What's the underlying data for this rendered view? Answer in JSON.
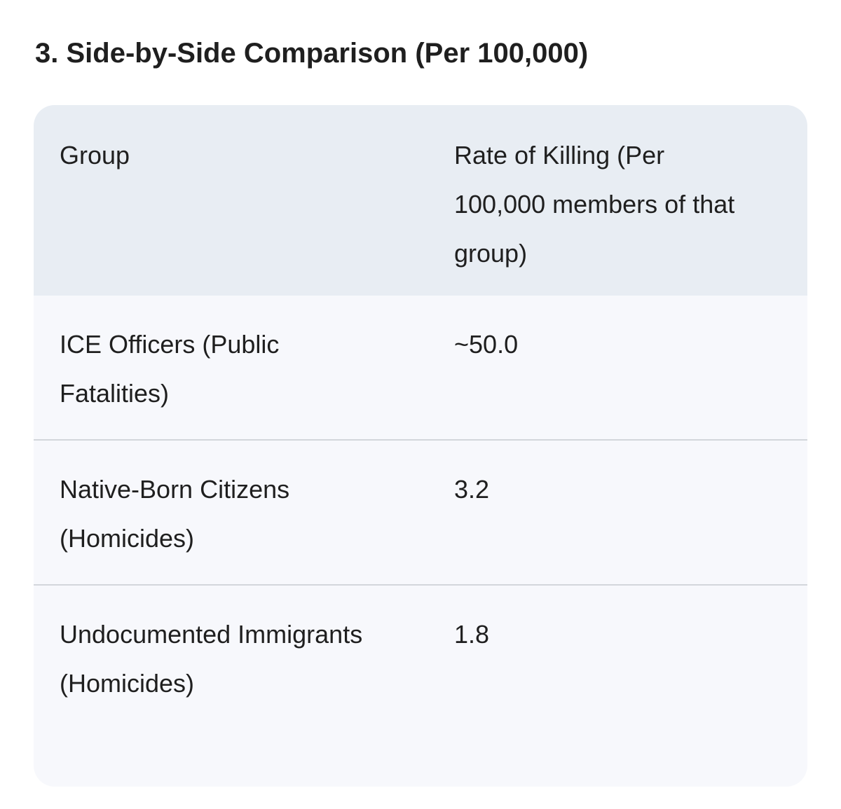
{
  "heading": "3. Side-by-Side Comparison (Per 100,000)",
  "table": {
    "header": [
      "Group",
      "Rate of Killing (Per 100,000 members of that group)"
    ],
    "rows": [
      [
        "ICE Officers (Public Fatalities)",
        "~50.0"
      ],
      [
        "Native-Born Citizens (Homicides)",
        "3.2"
      ],
      [
        "Undocumented Immigrants (Homicides)",
        "1.8"
      ]
    ]
  }
}
